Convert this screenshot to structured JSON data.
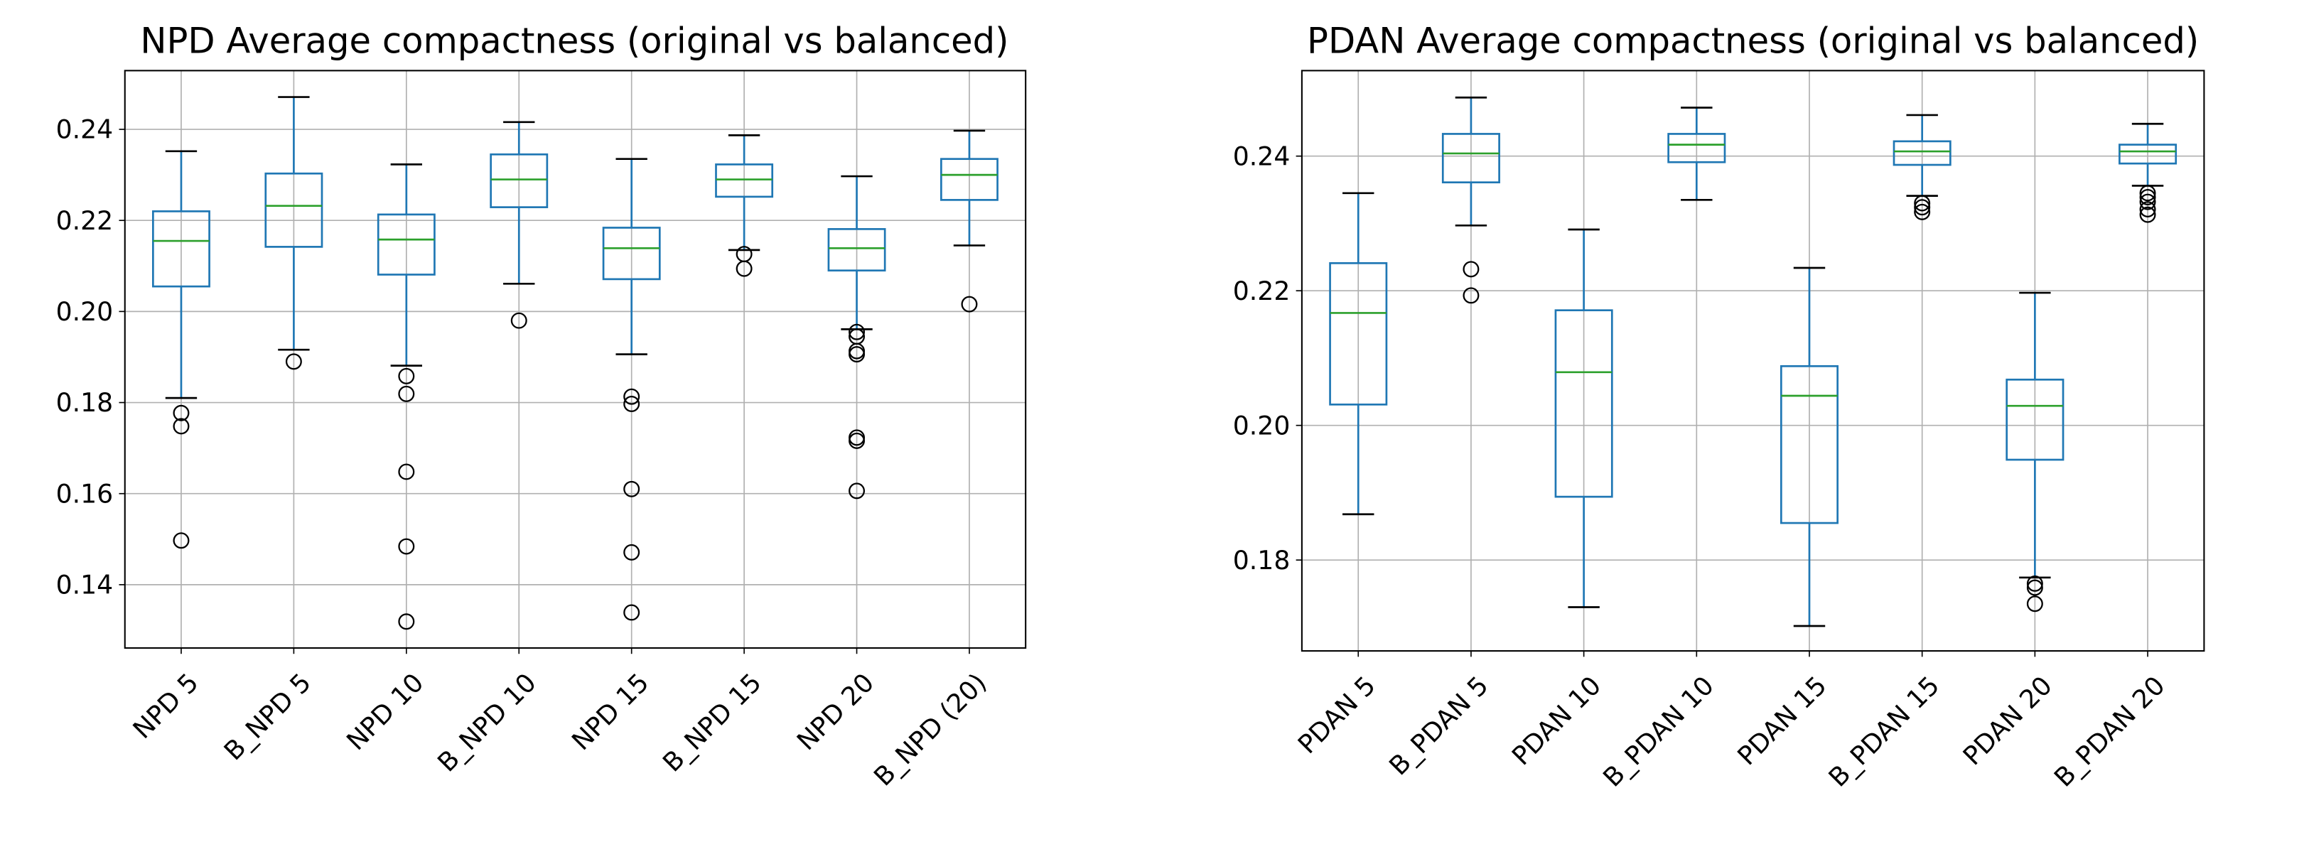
{
  "chart_data": [
    {
      "type": "box",
      "title": "NPD Average compactness (original vs balanced)",
      "categories": [
        "NPD 5",
        "B_NPD 5",
        "NPD 10",
        "B_NPD 10",
        "NPD 15",
        "B_NPD 15",
        "NPD 20",
        "B_NPD (20)"
      ],
      "boxes": [
        {
          "whislo": 0.181,
          "q1": 0.2055,
          "med": 0.2155,
          "q3": 0.222,
          "whishi": 0.2352,
          "fliers": [
            0.1777,
            0.1748,
            0.1497
          ]
        },
        {
          "whislo": 0.1916,
          "q1": 0.2142,
          "med": 0.2232,
          "q3": 0.2303,
          "whishi": 0.2471,
          "fliers": [
            0.189
          ]
        },
        {
          "whislo": 0.1881,
          "q1": 0.2081,
          "med": 0.2158,
          "q3": 0.2213,
          "whishi": 0.2323,
          "fliers": [
            0.1858,
            0.1819,
            0.1648,
            0.1484,
            0.1319
          ]
        },
        {
          "whislo": 0.2061,
          "q1": 0.2229,
          "med": 0.229,
          "q3": 0.2345,
          "whishi": 0.2416,
          "fliers": [
            0.198
          ]
        },
        {
          "whislo": 0.1906,
          "q1": 0.2071,
          "med": 0.2139,
          "q3": 0.2184,
          "whishi": 0.2335,
          "fliers": [
            0.1813,
            0.1797,
            0.161,
            0.1471,
            0.1339
          ]
        },
        {
          "whislo": 0.2135,
          "q1": 0.2252,
          "med": 0.229,
          "q3": 0.2323,
          "whishi": 0.2387,
          "fliers": [
            0.2126,
            0.2094
          ]
        },
        {
          "whislo": 0.1961,
          "q1": 0.209,
          "med": 0.2139,
          "q3": 0.2181,
          "whishi": 0.2297,
          "fliers": [
            0.1955,
            0.1945,
            0.1913,
            0.1906,
            0.1723,
            0.1716,
            0.1606
          ]
        },
        {
          "whislo": 0.2145,
          "q1": 0.2245,
          "med": 0.23,
          "q3": 0.2335,
          "whishi": 0.2397,
          "fliers": [
            0.2016
          ]
        }
      ],
      "color": "#1f77b4",
      "median_color": "#2ca02c",
      "grid": true,
      "ylim": [
        0.1261,
        0.2529
      ],
      "yticks": [
        0.14,
        0.16,
        0.18,
        {
          "value": 0.2,
          "label": "0.20"
        },
        0.22,
        0.24
      ]
    },
    {
      "type": "box",
      "title": "PDAN Average compactness (original vs balanced)",
      "categories": [
        "PDAN 5",
        "B_PDAN 5",
        "PDAN 10",
        "B_PDAN 10",
        "PDAN 15",
        "B_PDAN 15",
        "PDAN 20",
        "B_PDAN 20"
      ],
      "boxes": [
        {
          "whislo": 0.1868,
          "q1": 0.2031,
          "med": 0.2167,
          "q3": 0.2241,
          "whishi": 0.2345,
          "fliers": []
        },
        {
          "whislo": 0.2297,
          "q1": 0.2361,
          "med": 0.2404,
          "q3": 0.2433,
          "whishi": 0.2487,
          "fliers": [
            0.2232,
            0.2193
          ]
        },
        {
          "whislo": 0.173,
          "q1": 0.1894,
          "med": 0.2079,
          "q3": 0.2171,
          "whishi": 0.2291,
          "fliers": []
        },
        {
          "whislo": 0.2335,
          "q1": 0.2391,
          "med": 0.2417,
          "q3": 0.2433,
          "whishi": 0.2472,
          "fliers": []
        },
        {
          "whislo": 0.1702,
          "q1": 0.1855,
          "med": 0.2044,
          "q3": 0.2088,
          "whishi": 0.2234,
          "fliers": []
        },
        {
          "whislo": 0.2341,
          "q1": 0.2387,
          "med": 0.2407,
          "q3": 0.2422,
          "whishi": 0.2461,
          "fliers": [
            0.233,
            0.2324,
            0.2317
          ]
        },
        {
          "whislo": 0.1774,
          "q1": 0.1949,
          "med": 0.2029,
          "q3": 0.2068,
          "whishi": 0.2197,
          "fliers": [
            0.1765,
            0.1759,
            0.1735
          ]
        },
        {
          "whislo": 0.2356,
          "q1": 0.2389,
          "med": 0.2407,
          "q3": 0.2417,
          "whishi": 0.2448,
          "fliers": [
            0.2345,
            0.2339,
            0.2332,
            0.2321,
            0.2313
          ]
        }
      ],
      "color": "#1f77b4",
      "median_color": "#2ca02c",
      "grid": true,
      "ylim": [
        0.1665,
        0.2527
      ],
      "yticks": [
        0.18,
        {
          "value": 0.2,
          "label": "0.20"
        },
        0.22,
        0.24
      ]
    }
  ]
}
